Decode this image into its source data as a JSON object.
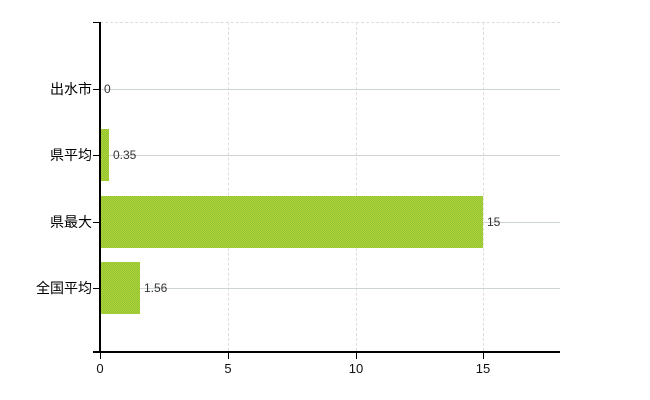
{
  "chart_data": {
    "type": "bar",
    "orientation": "horizontal",
    "title": "",
    "categories": [
      "出水市",
      "県平均",
      "県最大",
      "全国平均"
    ],
    "values": [
      0,
      0.35,
      15,
      1.56
    ],
    "value_labels": [
      "0",
      "0.35",
      "15",
      "1.56"
    ],
    "x_ticks": [
      "0",
      "5",
      "10",
      "15"
    ],
    "x_tick_values": [
      0,
      5,
      10,
      15
    ],
    "xlim": [
      0,
      18
    ],
    "grid": true,
    "legend": false,
    "colors": {
      "bar_base": "#9fc933",
      "bar_light": "#b3d531",
      "bar_dark": "#8ec23a",
      "h_gridline": "#ccd6cc",
      "v_gridline": "#dddddd",
      "axis": "#000000",
      "category_text": "#000000",
      "value_text": "#333333",
      "tick_text": "#111111",
      "background": "#ffffff"
    }
  }
}
